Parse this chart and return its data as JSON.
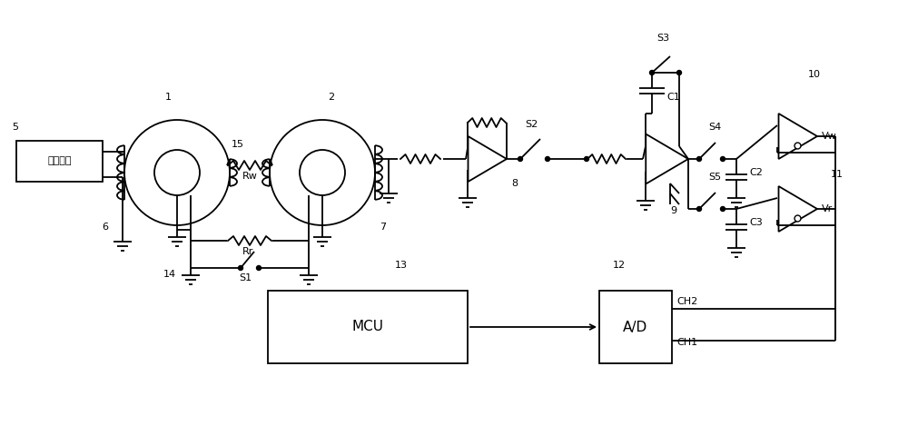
{
  "bg_color": "#ffffff",
  "line_color": "#000000",
  "fig_width": 10.0,
  "fig_height": 4.69,
  "dpi": 100,
  "labels": {
    "signal_box": "激励信号",
    "label1": "1",
    "label2": "2",
    "label5": "5",
    "label6": "6",
    "label7": "7",
    "label8": "8",
    "label9": "9",
    "label10": "10",
    "label11": "11",
    "label12": "12",
    "label13": "13",
    "label14": "14",
    "label15": "15",
    "Rw": "Rw",
    "Rr": "Rr",
    "S1": "S1",
    "S2": "S2",
    "S3": "S3",
    "S4": "S4",
    "S5": "S5",
    "C1": "C1",
    "C2": "C2",
    "C3": "C3",
    "Vw": "Vw",
    "Vr": "Vr",
    "MCU": "MCU",
    "AD": "A/D",
    "CH1": "CH1",
    "CH2": "CH2"
  }
}
